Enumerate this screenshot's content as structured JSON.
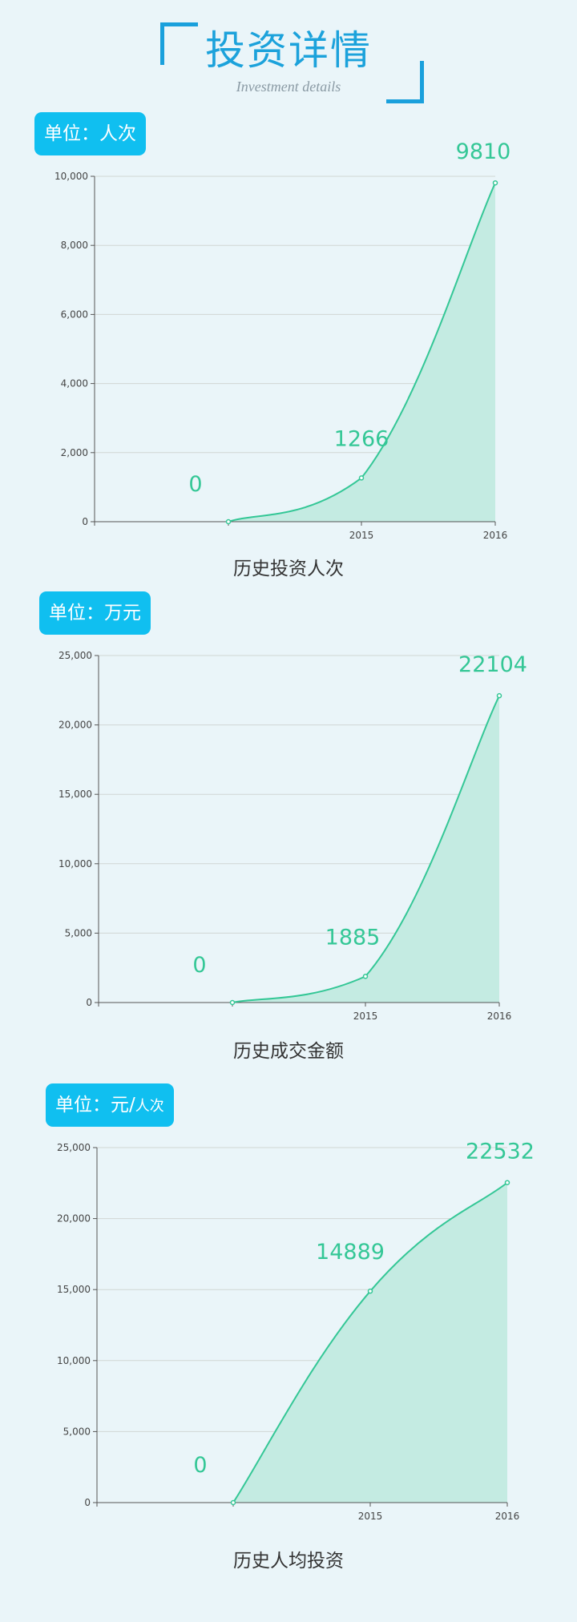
{
  "header": {
    "title": "投资详情",
    "subtitle": "Investment details"
  },
  "colors": {
    "accent": "#1aa0dc",
    "badge": "#10bff0",
    "series": "#34c796",
    "fill": "#c4ebe2",
    "grid": "#d0d6d4",
    "axis": "#555555"
  },
  "chart_data": [
    {
      "type": "area",
      "unit_label": "单位：人次",
      "title": "历史投资人次",
      "categories": [
        "",
        "2015",
        "2016"
      ],
      "values": [
        0,
        1266,
        9810
      ],
      "data_labels": [
        "0",
        "1266",
        "9810"
      ],
      "ylim": [
        0,
        10000
      ],
      "yticks": [
        0,
        2000,
        4000,
        6000,
        8000,
        10000
      ],
      "ytick_labels": [
        "0",
        "2,000",
        "4,000",
        "6,000",
        "8,000",
        "10,000"
      ],
      "grid": true
    },
    {
      "type": "area",
      "unit_label": "单位：万元",
      "title": "历史成交金额",
      "categories": [
        "",
        "2015",
        "2016"
      ],
      "values": [
        0,
        1885,
        22104
      ],
      "data_labels": [
        "0",
        "1885",
        "22104"
      ],
      "ylim": [
        0,
        25000
      ],
      "yticks": [
        0,
        5000,
        10000,
        15000,
        20000,
        25000
      ],
      "ytick_labels": [
        "0",
        "5,000",
        "10,000",
        "15,000",
        "20,000",
        "25,000"
      ],
      "grid": true
    },
    {
      "type": "area",
      "unit_label_main": "单位：元/",
      "unit_label_small": "人次",
      "title": "历史人均投资",
      "categories": [
        "",
        "2015",
        "2016"
      ],
      "values": [
        0,
        14889,
        22532
      ],
      "data_labels": [
        "0",
        "14889",
        "22532"
      ],
      "ylim": [
        0,
        25000
      ],
      "yticks": [
        0,
        5000,
        10000,
        15000,
        20000,
        25000
      ],
      "ytick_labels": [
        "0",
        "5,000",
        "10,000",
        "15,000",
        "20,000",
        "25,000"
      ],
      "grid": true
    }
  ]
}
